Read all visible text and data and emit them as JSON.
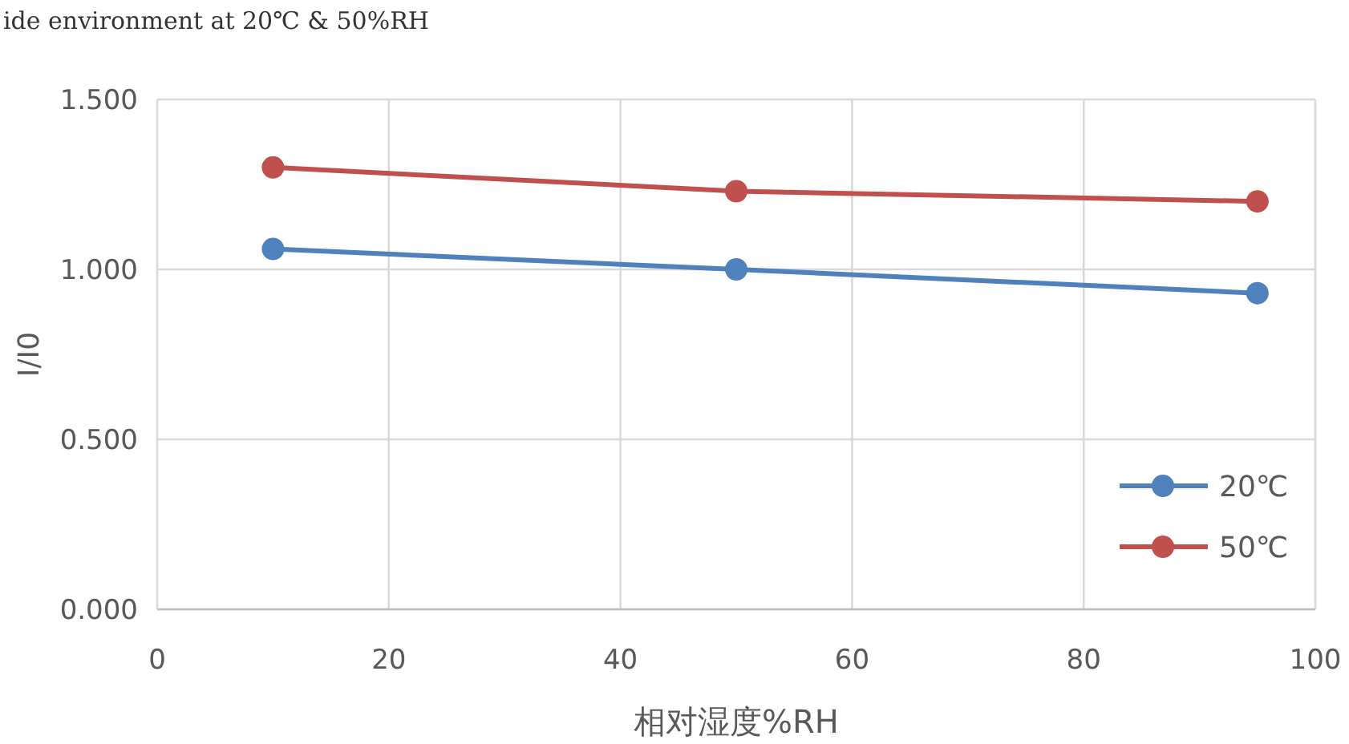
{
  "chart_data": {
    "type": "line",
    "title": "ide environment at 20℃ & 50%RH",
    "xlabel": "相对湿度%RH",
    "ylabel": "I/I0",
    "x": [
      10,
      50,
      95
    ],
    "series": [
      {
        "name": "20℃",
        "color": "#4f81bd",
        "values": [
          1.06,
          1.0,
          0.93
        ]
      },
      {
        "name": "50℃",
        "color": "#c0504d",
        "values": [
          1.3,
          1.23,
          1.2
        ]
      }
    ],
    "xlim": [
      0,
      100
    ],
    "xticks": [
      0,
      20,
      40,
      60,
      80,
      100
    ],
    "ylim": [
      0,
      1.5
    ],
    "yticks": [
      {
        "value": 0,
        "label": "0.000"
      },
      {
        "value": 0.5,
        "label": "0.500"
      },
      {
        "value": 1,
        "label": "1.000"
      },
      {
        "value": 1.5,
        "label": "1.500"
      }
    ],
    "grid": true,
    "legend": "bottom right",
    "marker": "circle",
    "line_style": "solid"
  }
}
